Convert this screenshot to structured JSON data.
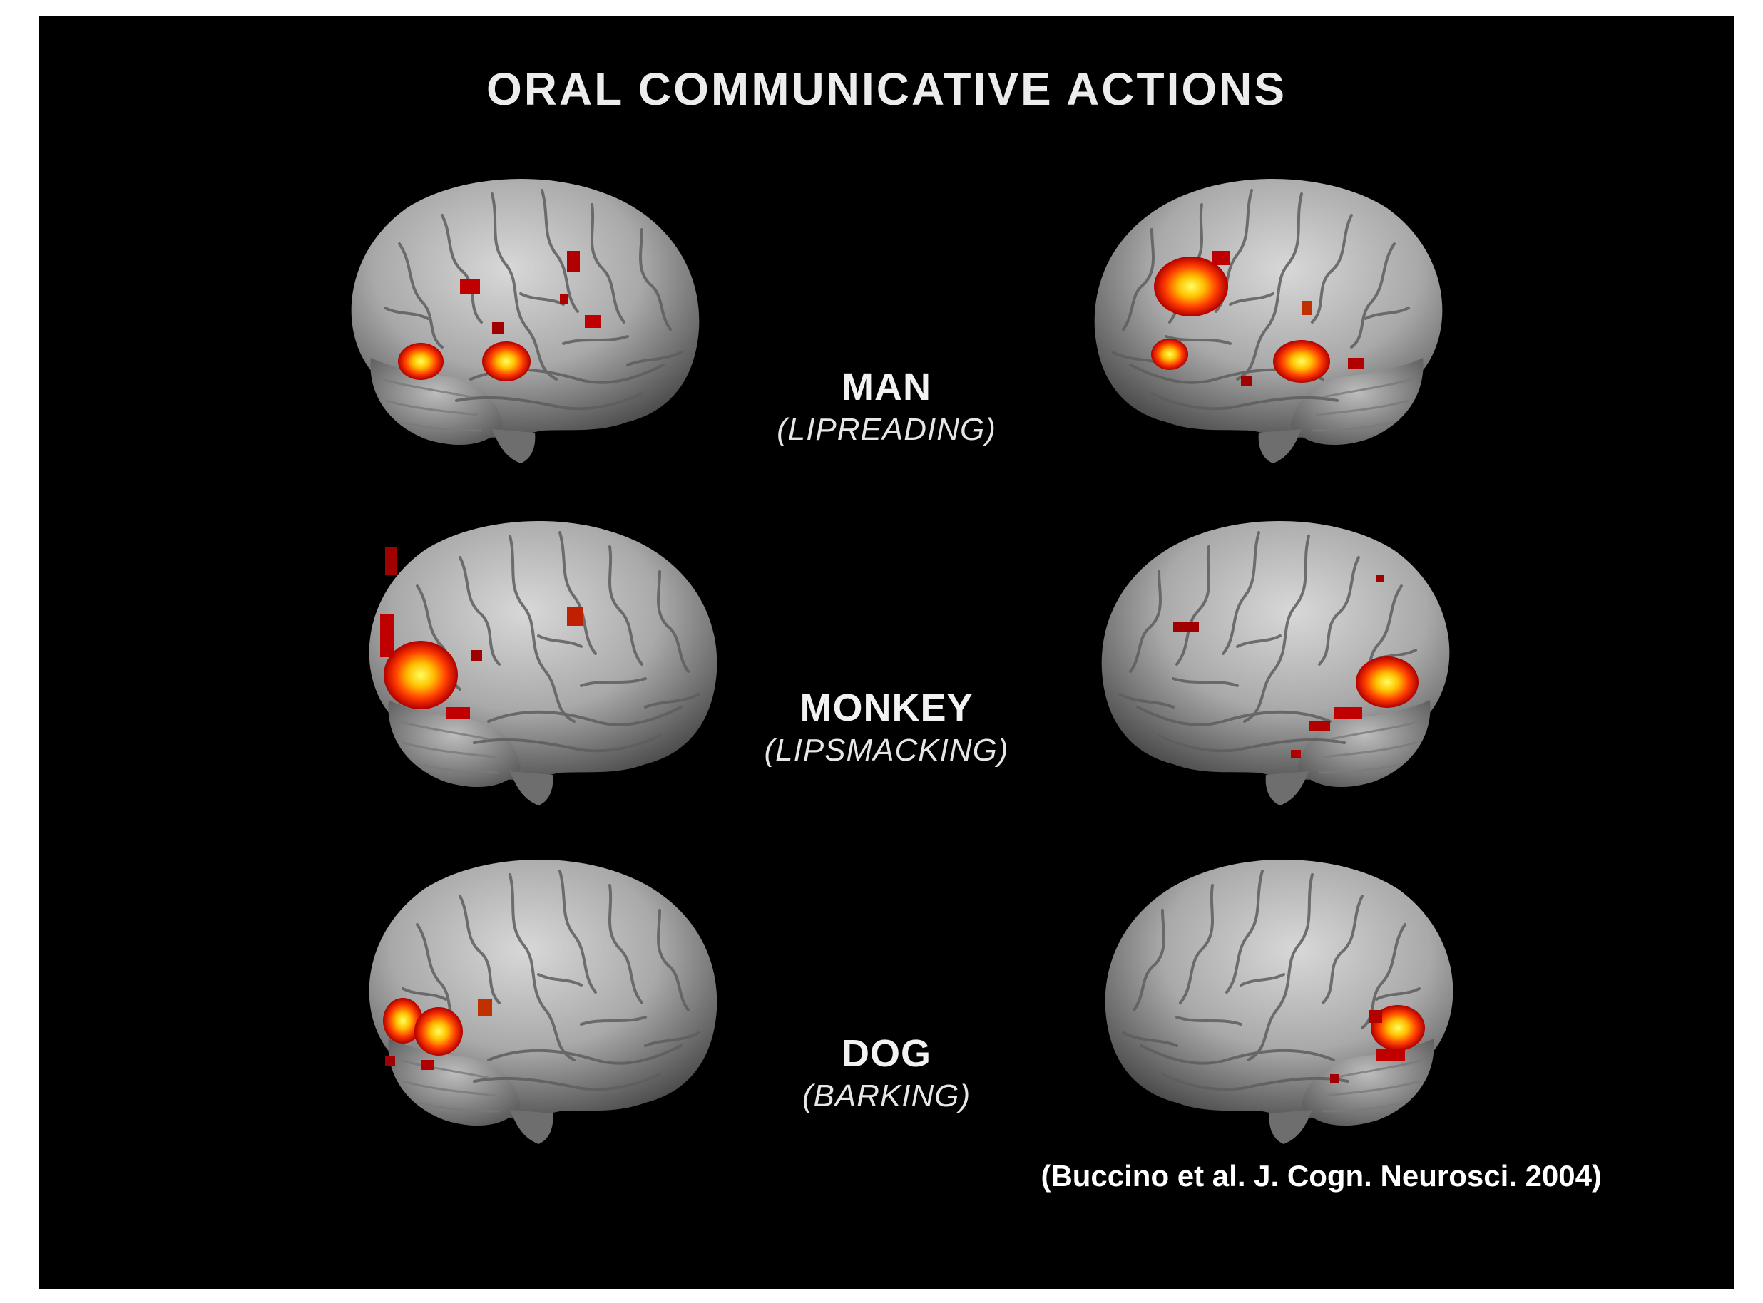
{
  "figure": {
    "title": "ORAL COMMUNICATIVE ACTIONS",
    "citation": "(Buccino et al. J. Cogn. Neurosci. 2004)",
    "rows": [
      {
        "subject": "MAN",
        "action": "(LIPREADING)"
      },
      {
        "subject": "MONKEY",
        "action": "(LIPSMACKING)"
      },
      {
        "subject": "DOG",
        "action": "(BARKING)"
      }
    ],
    "brain_image_description": "left and right lateral views of brain surface renderings with red-yellow activation clusters",
    "colors": {
      "background": "#000000",
      "brain_surface": "#a9a9a9",
      "activation_low": "#b00000",
      "activation_mid": "#ff5a00",
      "activation_high": "#ffff40"
    }
  }
}
